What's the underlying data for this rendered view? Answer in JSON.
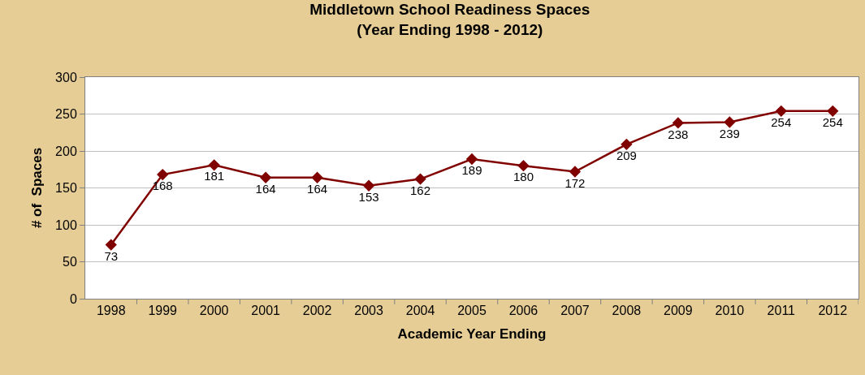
{
  "chart_data": {
    "type": "line",
    "title": "Middletown School Readiness Spaces",
    "subtitle": "(Year Ending 1998 - 2012)",
    "xlabel": "Academic Year Ending",
    "ylabel": "# of  Spaces",
    "categories": [
      "1998",
      "1999",
      "2000",
      "2001",
      "2002",
      "2003",
      "2004",
      "2005",
      "2006",
      "2007",
      "2008",
      "2009",
      "2010",
      "2011",
      "2012"
    ],
    "values": [
      73,
      168,
      181,
      164,
      164,
      153,
      162,
      189,
      180,
      172,
      209,
      238,
      239,
      254,
      254
    ],
    "color": "#800000",
    "ylim": [
      0,
      300
    ],
    "yticks": [
      0,
      50,
      100,
      150,
      200,
      250,
      300
    ],
    "grid": "y",
    "marker": "diamond",
    "line_style": "solid",
    "data_labels": true
  }
}
